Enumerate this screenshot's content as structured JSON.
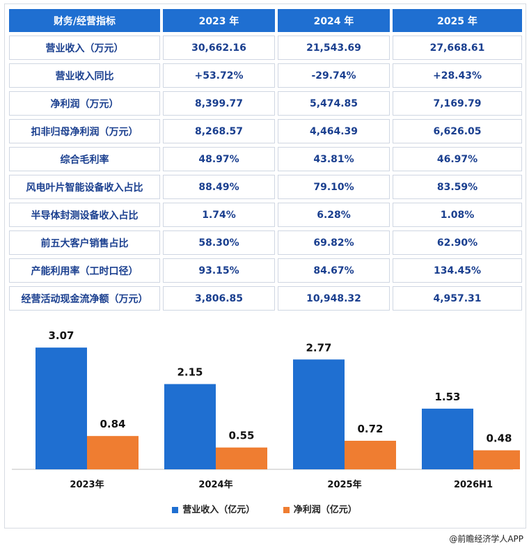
{
  "table": {
    "headers": [
      "财务/经营指标",
      "2023 年",
      "2024 年",
      "2025 年"
    ],
    "rows": [
      [
        "营业收入（万元）",
        "30,662.16",
        "21,543.69",
        "27,668.61"
      ],
      [
        "营业收入同比",
        "+53.72%",
        "-29.74%",
        "+28.43%"
      ],
      [
        "净利润（万元）",
        "8,399.77",
        "5,474.85",
        "7,169.79"
      ],
      [
        "扣非归母净利润（万元）",
        "8,268.57",
        "4,464.39",
        "6,626.05"
      ],
      [
        "综合毛利率",
        "48.97%",
        "43.81%",
        "46.97%"
      ],
      [
        "风电叶片智能设备收入占比",
        "88.49%",
        "79.10%",
        "83.59%"
      ],
      [
        "半导体封测设备收入占比",
        "1.74%",
        "6.28%",
        "1.08%"
      ],
      [
        "前五大客户销售占比",
        "58.30%",
        "69.82%",
        "62.90%"
      ],
      [
        "产能利用率（工时口径）",
        "93.15%",
        "84.67%",
        "134.45%"
      ],
      [
        "经营活动现金流净额（万元）",
        "3,806.85",
        "10,948.32",
        "4,957.31"
      ]
    ]
  },
  "colors": {
    "header_bg": "#1f6fd1",
    "revenue": "#1f6fd1",
    "profit": "#ef7d31",
    "cell_text": "#1a3f8f"
  },
  "chart_data": {
    "type": "bar",
    "categories": [
      "2023年",
      "2024年",
      "2025年",
      "2026H1"
    ],
    "series": [
      {
        "name": "营业收入（亿元）",
        "values": [
          3.07,
          2.15,
          2.77,
          1.53
        ],
        "color": "#1f6fd1"
      },
      {
        "name": "净利润（亿元）",
        "values": [
          0.84,
          0.55,
          0.72,
          0.48
        ],
        "color": "#ef7d31"
      }
    ],
    "data_labels": [
      [
        "3.07",
        "2.15",
        "2.77",
        "1.53"
      ],
      [
        "0.84",
        "0.55",
        "0.72",
        "0.48"
      ]
    ],
    "ylim": [
      0,
      3.6
    ],
    "grid": false,
    "legend_placement": "bottom"
  },
  "footer": {
    "credit": "@前瞻经济学人APP"
  }
}
